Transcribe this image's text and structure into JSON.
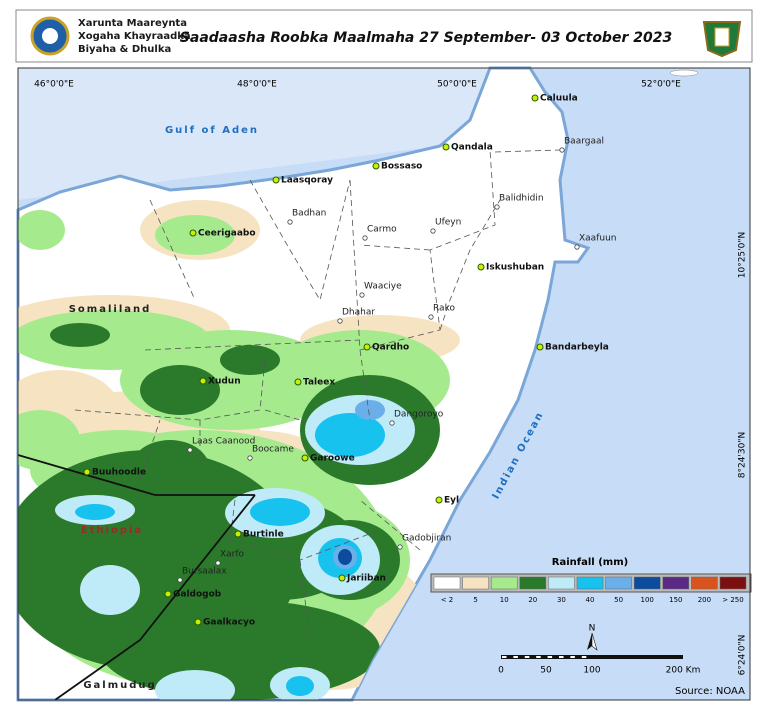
{
  "header": {
    "org": [
      "Xarunta Maareynta",
      "Xogaha Khayraadka",
      "Biyaha & Dhulka"
    ],
    "title": "Saadaasha Roobka Maalmaha 27 September- 03 October 2023"
  },
  "map": {
    "lon_labels": [
      "46°0'0\"E",
      "48°0'0\"E",
      "50°0'0\"E",
      "52°0'0\"E"
    ],
    "lat_labels": [
      "10°25'0\"N",
      "8°24'30\"N",
      "6°24'0\"N"
    ],
    "seas": [
      "Gulf of Aden",
      "Indian Ocean"
    ],
    "regions": [
      "Somaliland",
      "Ethiopia",
      "Galmudug"
    ],
    "towns": [
      "Caluula",
      "Qandala",
      "Baargaal",
      "Bossaso",
      "Laasqoray",
      "Balidhidin",
      "Badhan",
      "Carmo",
      "Ufeyn",
      "Xaafuun",
      "Ceerigaabo",
      "Iskushuban",
      "Waaciye",
      "Dhahar",
      "Rako",
      "Qardho",
      "Bandarbeyla",
      "Xudun",
      "Taleex",
      "Dangoroyo",
      "Laas Caanood",
      "Boocame",
      "Garoowe",
      "Buuhoodle",
      "Eyl",
      "Burtinle",
      "Gadobjiran",
      "Xarfo",
      "Jariiban",
      "Bursaalax",
      "Galdogob",
      "Gaalkacyo"
    ]
  },
  "legend": {
    "title": "Rainfall (mm)",
    "classes": [
      {
        "label": "< 2",
        "color": "#ffffff"
      },
      {
        "label": "5",
        "color": "#f6e3c1"
      },
      {
        "label": "10",
        "color": "#a6ea8e"
      },
      {
        "label": "20",
        "color": "#2b7a2b"
      },
      {
        "label": "30",
        "color": "#bfeaf8"
      },
      {
        "label": "40",
        "color": "#17c2ee"
      },
      {
        "label": "50",
        "color": "#6aafea"
      },
      {
        "label": "100",
        "color": "#0b4c9e"
      },
      {
        "label": "150",
        "color": "#5a2a86"
      },
      {
        "label": "200",
        "color": "#d8531d"
      },
      {
        "label": "> 250",
        "color": "#7a1010"
      }
    ]
  },
  "scale": {
    "north": "N",
    "labels": [
      "0",
      "50",
      "100",
      "200 Km"
    ]
  },
  "source": "Source: NOAA"
}
